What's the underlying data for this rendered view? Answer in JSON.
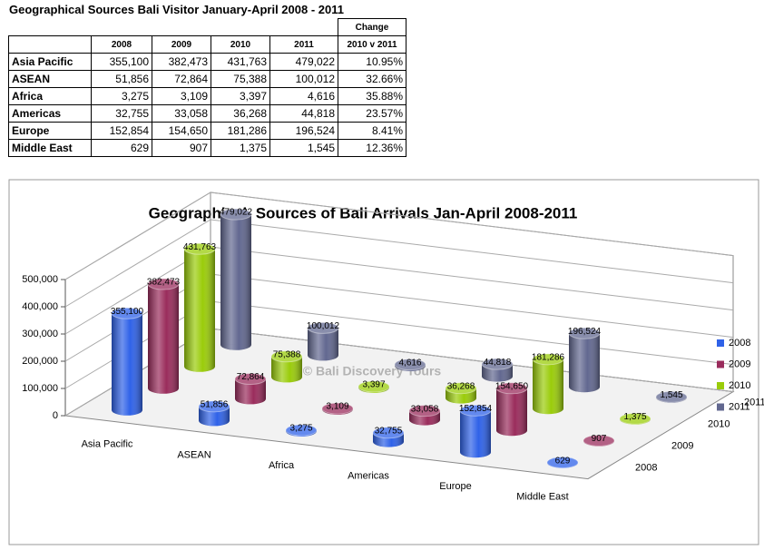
{
  "table": {
    "title": "Geographical Sources Bali Visitor January-April 2008 - 2011",
    "change_header": "Change",
    "columns": [
      "2008",
      "2009",
      "2010",
      "2011",
      "2010 v 2011"
    ],
    "rows": [
      [
        "Asia Pacific",
        "355,100",
        "382,473",
        "431,763",
        "479,022",
        "10.95%"
      ],
      [
        "ASEAN",
        "51,856",
        "72,864",
        "75,388",
        "100,012",
        "32.66%"
      ],
      [
        "Africa",
        "3,275",
        "3,109",
        "3,397",
        "4,616",
        "35.88%"
      ],
      [
        "Americas",
        "32,755",
        "33,058",
        "36,268",
        "44,818",
        "23.57%"
      ],
      [
        "Europe",
        "152,854",
        "154,650",
        "181,286",
        "196,524",
        "8.41%"
      ],
      [
        "Middle East",
        "629",
        "907",
        "1,375",
        "1,545",
        "12.36%"
      ]
    ]
  },
  "chart_data": {
    "type": "bar3d",
    "title": "Geographical  Sources of Bali Arrivals Jan-April 2008-2011",
    "watermark": "© Bali Discovery Tours",
    "categories": [
      "Asia Pacific",
      "ASEAN",
      "Africa",
      "Americas",
      "Europe",
      "Middle East"
    ],
    "series": [
      {
        "name": "2008",
        "color": "#2f62e8",
        "values": [
          355100,
          51856,
          3275,
          32755,
          152854,
          629
        ],
        "value_labels": [
          "355,100",
          "51,856",
          "3,275",
          "32,755",
          "152,854",
          "629"
        ]
      },
      {
        "name": "2009",
        "color": "#9a2c5c",
        "values": [
          382473,
          72864,
          3109,
          33058,
          154650,
          907
        ],
        "value_labels": [
          "382,473",
          "72,864",
          "3,109",
          "33,058",
          "154,650",
          "907"
        ]
      },
      {
        "name": "2010",
        "color": "#9acc0a",
        "values": [
          431763,
          75388,
          3397,
          36268,
          181286,
          1375
        ],
        "value_labels": [
          "431,763",
          "75,388",
          "3,397",
          "36,268",
          "181,286",
          "1,375"
        ]
      },
      {
        "name": "2011",
        "color": "#626890",
        "values": [
          479022,
          100012,
          4616,
          44818,
          196524,
          1545
        ],
        "value_labels": [
          "479,022",
          "100,012",
          "4,616",
          "44,818",
          "196,524",
          "1,545"
        ]
      }
    ],
    "ylim": [
      0,
      500000
    ],
    "yticks": [
      0,
      {
        "value": 100000,
        "label": "100,000"
      },
      {
        "value": 200000,
        "label": "200,000"
      },
      {
        "value": 300000,
        "label": "300,000"
      },
      {
        "value": 400000,
        "label": "400,000"
      },
      {
        "value": 500000,
        "label": "500,000"
      }
    ],
    "grid": true,
    "legend": "right"
  }
}
